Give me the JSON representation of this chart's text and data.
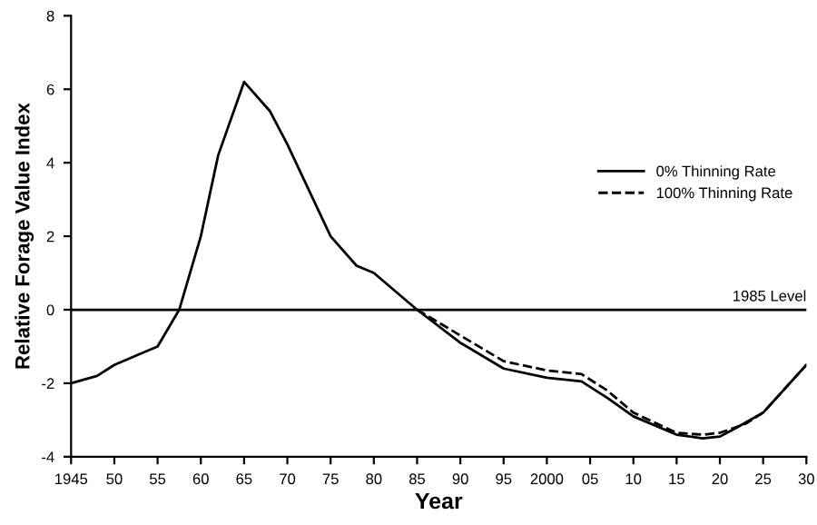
{
  "chart_data": {
    "type": "line",
    "xlabel": "Year",
    "ylabel": "Relative Forage Value Index",
    "xlim": [
      1945,
      2030
    ],
    "ylim": [
      -4,
      8
    ],
    "xticks": [
      {
        "value": 1945,
        "label": "1945"
      },
      {
        "value": 1950,
        "label": "50"
      },
      {
        "value": 1955,
        "label": "55"
      },
      {
        "value": 1960,
        "label": "60"
      },
      {
        "value": 1965,
        "label": "65"
      },
      {
        "value": 1970,
        "label": "70"
      },
      {
        "value": 1975,
        "label": "75"
      },
      {
        "value": 1980,
        "label": "80"
      },
      {
        "value": 1985,
        "label": "85"
      },
      {
        "value": 1990,
        "label": "90"
      },
      {
        "value": 1995,
        "label": "95"
      },
      {
        "value": 2000,
        "label": "2000"
      },
      {
        "value": 2005,
        "label": "05"
      },
      {
        "value": 2010,
        "label": "10"
      },
      {
        "value": 2015,
        "label": "15"
      },
      {
        "value": 2020,
        "label": "20"
      },
      {
        "value": 2025,
        "label": "25"
      },
      {
        "value": 2030,
        "label": "30"
      }
    ],
    "yticks": [
      -4,
      {
        "value": -2,
        "label": "-2"
      },
      0,
      2,
      4,
      6,
      8
    ],
    "grid": false,
    "legend": "right",
    "marker": "none",
    "ref_lines": [
      {
        "axis": "y",
        "value": 0,
        "label": "1985 Level",
        "color": "#000000"
      }
    ],
    "series": [
      {
        "name": "0% Thinning Rate",
        "color": "#000000",
        "line_style": "solid",
        "x": [
          1945,
          1948,
          1950,
          1953,
          1955,
          1957.5,
          1960,
          1962,
          1965,
          1968,
          1970,
          1972,
          1975,
          1978,
          1980,
          1982,
          1985,
          1990,
          1995,
          2000,
          2004,
          2007,
          2010,
          2015,
          2018,
          2020,
          2022,
          2025,
          2030
        ],
        "values": [
          -2,
          -1.8,
          -1.5,
          -1.2,
          -1.0,
          0,
          2.0,
          4.2,
          6.2,
          5.4,
          4.5,
          3.5,
          2.0,
          1.2,
          1.0,
          0.6,
          0,
          -0.9,
          -1.6,
          -1.85,
          -1.95,
          -2.4,
          -2.9,
          -3.4,
          -3.5,
          -3.45,
          -3.2,
          -2.8,
          -1.5
        ]
      },
      {
        "name": "100% Thinning Rate",
        "color": "#000000",
        "line_style": "dashed",
        "x": [
          1985,
          1990,
          1995,
          2000,
          2004,
          2007,
          2010,
          2015,
          2018,
          2020,
          2023,
          2025,
          2030
        ],
        "values": [
          0,
          -0.7,
          -1.4,
          -1.65,
          -1.75,
          -2.2,
          -2.8,
          -3.35,
          -3.4,
          -3.35,
          -3.1,
          -2.8,
          -1.5
        ]
      }
    ]
  }
}
